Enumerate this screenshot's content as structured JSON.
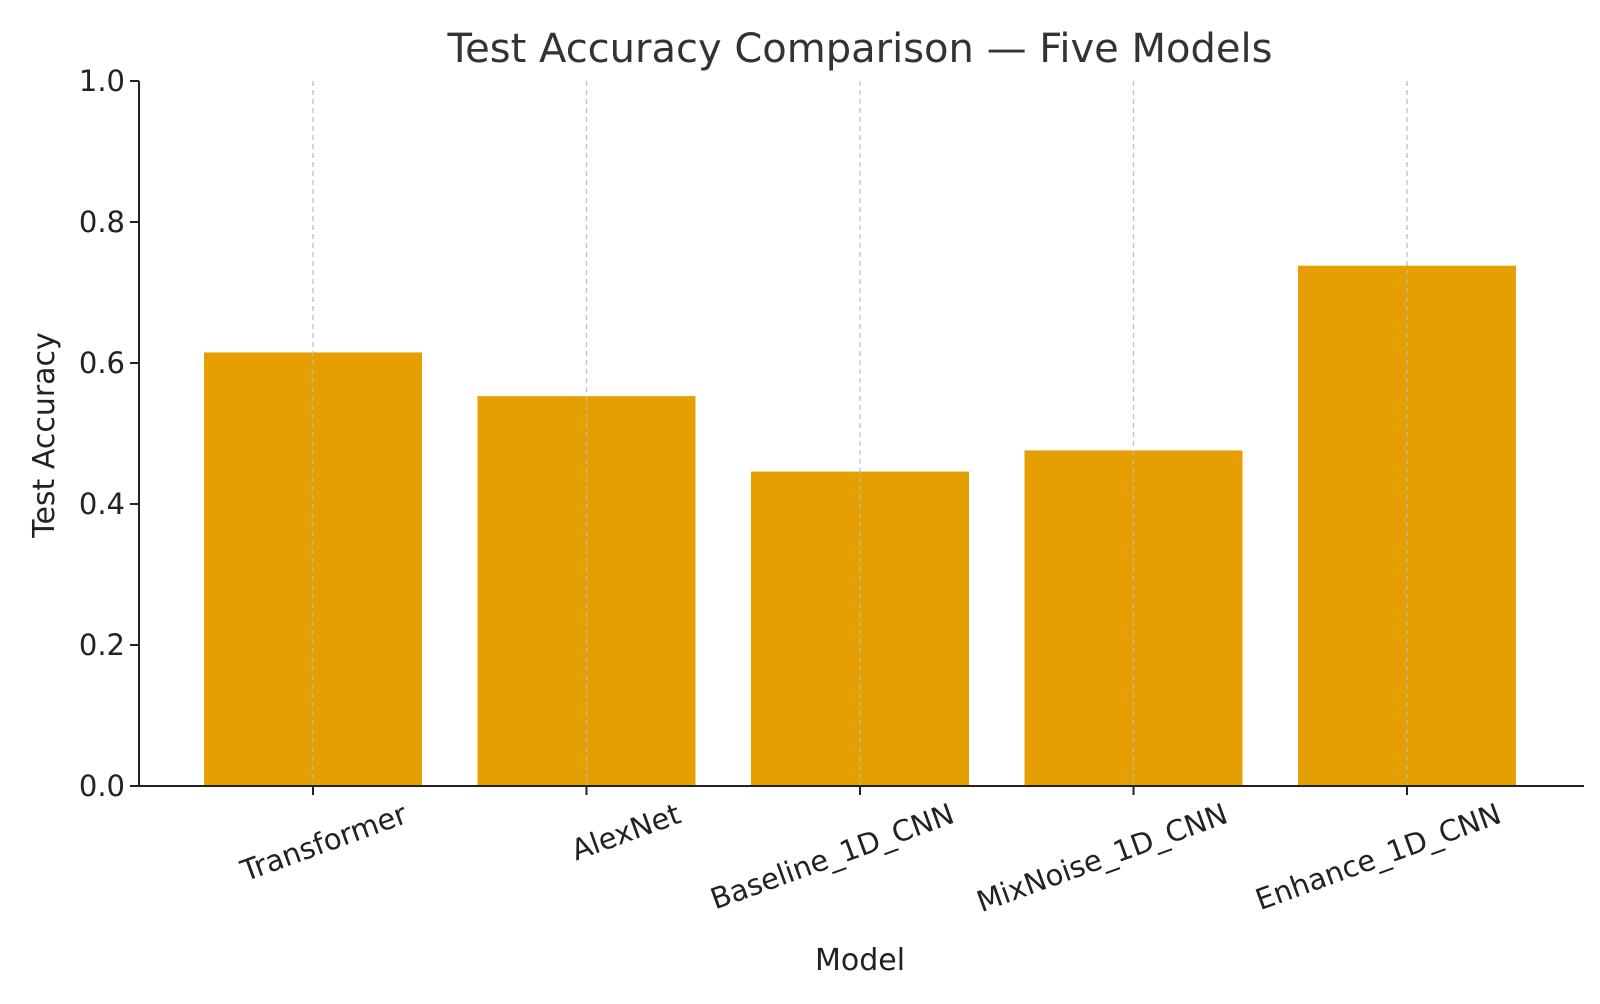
{
  "chart_data": {
    "type": "bar",
    "title": "Test Accuracy Comparison — Five Models",
    "xlabel": "Model",
    "ylabel": "Test Accuracy",
    "categories": [
      "Transformer",
      "AlexNet",
      "Baseline_1D_CNN",
      "MixNoise_1D_CNN",
      "Enhance_1D_CNN"
    ],
    "values": [
      0.615,
      0.553,
      0.446,
      0.476,
      0.738
    ],
    "ylim": [
      0.0,
      1.0
    ],
    "yticks": [
      "0.0",
      "0.2",
      "0.4",
      "0.6",
      "0.8",
      "1.0"
    ],
    "grid": "vertical dashed",
    "legend": "none",
    "bar_color": "#E69F00"
  }
}
